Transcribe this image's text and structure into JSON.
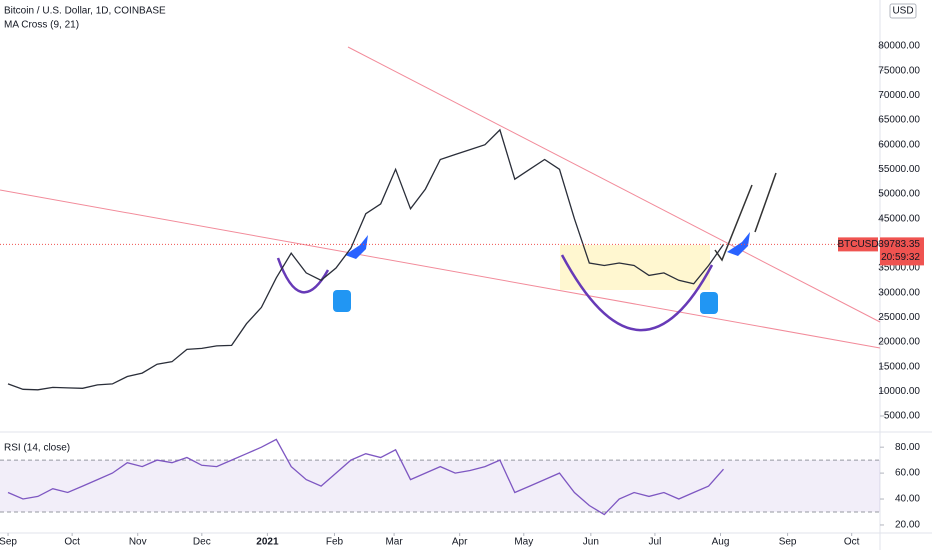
{
  "chart_data": [
    {
      "type": "line",
      "title": "Bitcoin / U.S. Dollar, 1D, COINBASE",
      "subtitle": "MA Cross (9, 21)",
      "currency": "USD",
      "symbol": "BTCUSD",
      "last_price": 39783.35,
      "countdown": "20:59:32",
      "x": [
        0,
        1,
        2,
        3,
        4,
        5,
        6,
        7,
        8,
        9,
        10,
        11,
        12,
        13,
        14,
        15,
        16,
        17,
        18,
        19,
        20,
        21,
        22,
        23,
        24,
        25,
        26,
        27,
        28,
        29,
        30,
        31,
        32,
        33,
        34,
        35,
        36,
        37,
        38,
        39,
        40,
        41,
        42,
        43,
        44,
        45,
        46,
        47,
        48
      ],
      "values": [
        11500,
        10400,
        10300,
        10800,
        10700,
        10600,
        11300,
        11500,
        13000,
        13700,
        15500,
        16000,
        18500,
        18700,
        19200,
        19300,
        23700,
        27000,
        33000,
        38000,
        34000,
        32500,
        35000,
        39000,
        46000,
        48000,
        55000,
        47000,
        51000,
        57000,
        58000,
        59000,
        60000,
        63000,
        53000,
        55000,
        57000,
        55000,
        45000,
        36000,
        35500,
        36000,
        35500,
        33500,
        34000,
        32500,
        31800,
        35500,
        39783.35
      ],
      "color": "#2a2e39",
      "xlim": [
        -0.54,
        58.5
      ],
      "ylim": [
        1750,
        89325
      ],
      "yticks": [
        {
          "value": 5000,
          "label": "5000.00"
        },
        {
          "value": 10000,
          "label": "10000.00"
        },
        {
          "value": 15000,
          "label": "15000.00"
        },
        {
          "value": 20000,
          "label": "20000.00"
        },
        {
          "value": 25000,
          "label": "25000.00"
        },
        {
          "value": 30000,
          "label": "30000.00"
        },
        {
          "value": 35000,
          "label": "35000.00"
        },
        {
          "value": 40000,
          "label": "40000.00"
        },
        {
          "value": 45000,
          "label": "45000.00"
        },
        {
          "value": 50000,
          "label": "50000.00"
        },
        {
          "value": 55000,
          "label": "55000.00"
        },
        {
          "value": 60000,
          "label": "60000.00"
        },
        {
          "value": 65000,
          "label": "65000.00"
        },
        {
          "value": 70000,
          "label": "70000.00"
        },
        {
          "value": 75000,
          "label": "75000.00"
        },
        {
          "value": 80000,
          "label": "80000.00"
        }
      ]
    },
    {
      "type": "line",
      "title": "RSI (14, close)",
      "x": [
        0,
        1,
        2,
        3,
        4,
        5,
        6,
        7,
        8,
        9,
        10,
        11,
        12,
        13,
        14,
        15,
        16,
        17,
        18,
        19,
        20,
        21,
        22,
        23,
        24,
        25,
        26,
        27,
        28,
        29,
        30,
        31,
        32,
        33,
        34,
        35,
        36,
        37,
        38,
        39,
        40,
        41,
        42,
        43,
        44,
        45,
        46,
        47,
        48
      ],
      "values": [
        45,
        40,
        42,
        48,
        45,
        50,
        55,
        60,
        68,
        65,
        70,
        68,
        72,
        66,
        65,
        70,
        75,
        80,
        86,
        65,
        55,
        50,
        60,
        70,
        75,
        72,
        78,
        55,
        60,
        65,
        60,
        62,
        65,
        70,
        45,
        50,
        55,
        60,
        45,
        35,
        28,
        40,
        45,
        42,
        45,
        40,
        45,
        50,
        63
      ],
      "color": "#7e57c2",
      "bands": [
        30,
        70
      ],
      "xlim": [
        -0.54,
        58.5
      ],
      "ylim": [
        13.8,
        91.7
      ],
      "yticks": [
        {
          "value": 20,
          "label": "20.00"
        },
        {
          "value": 40,
          "label": "40.00"
        },
        {
          "value": 60,
          "label": "60.00"
        },
        {
          "value": 80,
          "label": "80.00"
        }
      ],
      "xticks": [
        {
          "value": 0,
          "label": "Sep"
        },
        {
          "value": 4.3,
          "label": "Oct"
        },
        {
          "value": 8.7,
          "label": "Nov"
        },
        {
          "value": 13,
          "label": "Dec"
        },
        {
          "value": 17.4,
          "label": "2021"
        },
        {
          "value": 21.9,
          "label": "Feb"
        },
        {
          "value": 25.9,
          "label": "Mar"
        },
        {
          "value": 30.3,
          "label": "Apr"
        },
        {
          "value": 34.6,
          "label": "May"
        },
        {
          "value": 39.1,
          "label": "Jun"
        },
        {
          "value": 43.4,
          "label": "Jul"
        },
        {
          "value": 47.8,
          "label": "Aug"
        },
        {
          "value": 52.3,
          "label": "Sep"
        },
        {
          "value": 56.6,
          "label": "Oct"
        }
      ]
    }
  ]
}
